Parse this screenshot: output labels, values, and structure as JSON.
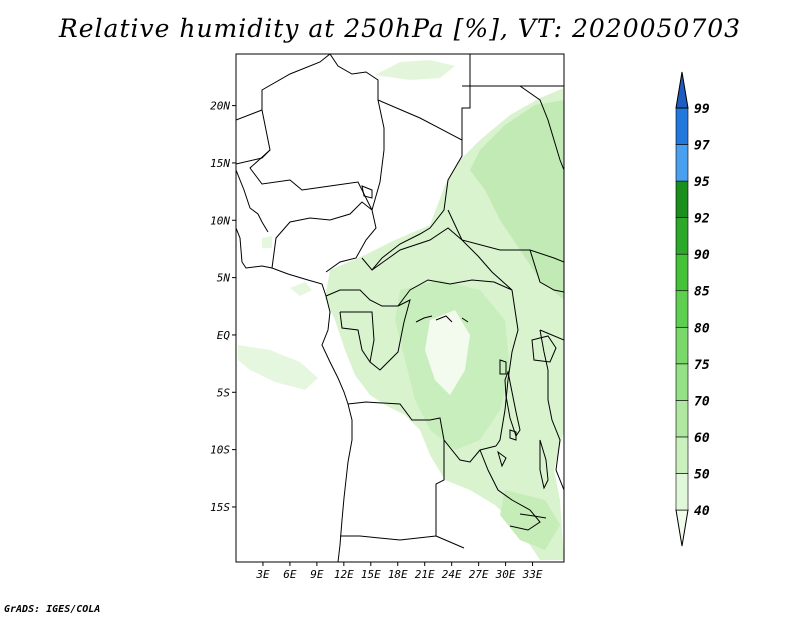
{
  "title": "Relative humidity at 250hPa [%], VT: 2020050703",
  "credit": "GrADS: IGES/COLA",
  "map": {
    "lon_range": [
      0,
      36.5
    ],
    "lat_range": [
      -19.8,
      24.5
    ],
    "lat_ticks": [
      {
        "value": 20,
        "label": "20N"
      },
      {
        "value": 15,
        "label": "15N"
      },
      {
        "value": 10,
        "label": "10N"
      },
      {
        "value": 5,
        "label": "5N"
      },
      {
        "value": 0,
        "label": "EQ"
      },
      {
        "value": -5,
        "label": "5S"
      },
      {
        "value": -10,
        "label": "10S"
      },
      {
        "value": -15,
        "label": "15S"
      }
    ],
    "lon_ticks": [
      {
        "value": 3,
        "label": "3E"
      },
      {
        "value": 6,
        "label": "6E"
      },
      {
        "value": 9,
        "label": "9E"
      },
      {
        "value": 12,
        "label": "12E"
      },
      {
        "value": 15,
        "label": "15E"
      },
      {
        "value": 18,
        "label": "18E"
      },
      {
        "value": 21,
        "label": "21E"
      },
      {
        "value": 24,
        "label": "24E"
      },
      {
        "value": 27,
        "label": "27E"
      },
      {
        "value": 30,
        "label": "30E"
      },
      {
        "value": 33,
        "label": "33E"
      }
    ]
  },
  "colorbar": {
    "levels": [
      "40",
      "50",
      "60",
      "70",
      "75",
      "80",
      "85",
      "90",
      "92",
      "95",
      "97",
      "99"
    ],
    "colors": [
      "#f0fbec",
      "#e1f7d9",
      "#c9f0bd",
      "#b0e8a2",
      "#95e186",
      "#7ad96a",
      "#5ecf50",
      "#45c13a",
      "#2ea82a",
      "#1a8f1e",
      "#4aa0ee",
      "#2278dc",
      "#1f5cc0"
    ]
  }
}
